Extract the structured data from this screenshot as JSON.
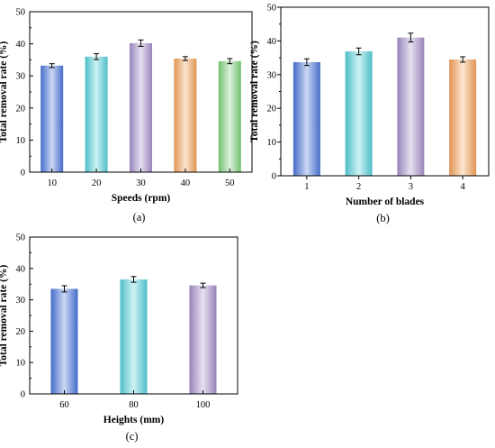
{
  "chart_data": [
    {
      "type": "bar",
      "panel_label": "(a)",
      "xlabel": "Speeds (rpm)",
      "ylabel": "Total removal rate  (%)",
      "ylim": [
        0,
        50
      ],
      "yticks": [
        0,
        10,
        20,
        30,
        40,
        50
      ],
      "categories": [
        "10",
        "20",
        "30",
        "40",
        "50"
      ],
      "values": [
        33.2,
        36.0,
        40.2,
        35.4,
        34.6
      ],
      "errors": [
        0.6,
        0.9,
        1.0,
        0.6,
        0.8
      ],
      "colors": [
        "#4a74d9",
        "#54cfd9",
        "#a48fc9",
        "#f3a15a",
        "#7dcf7a"
      ],
      "grid": false
    },
    {
      "type": "bar",
      "panel_label": "(b)",
      "xlabel": "Number of blades",
      "ylabel": "Total removal rate  (%)",
      "ylim": [
        0,
        50
      ],
      "yticks": [
        0,
        10,
        20,
        30,
        40,
        50
      ],
      "categories": [
        "1",
        "2",
        "3",
        "4"
      ],
      "values": [
        33.7,
        36.9,
        41.0,
        34.5
      ],
      "errors": [
        1.0,
        1.0,
        1.3,
        0.8
      ],
      "colors": [
        "#4a74d9",
        "#54cfd9",
        "#a48fc9",
        "#f3a15a"
      ],
      "grid": false
    },
    {
      "type": "bar",
      "panel_label": "(c)",
      "xlabel": "Heights (mm)",
      "ylabel": "Total removal rate  (%)",
      "ylim": [
        0,
        50
      ],
      "yticks": [
        0,
        10,
        20,
        30,
        40,
        50
      ],
      "categories": [
        "60",
        "80",
        "100"
      ],
      "values": [
        33.5,
        36.5,
        34.6
      ],
      "errors": [
        1.0,
        0.9,
        0.7
      ],
      "colors": [
        "#4a74d9",
        "#54cfd9",
        "#a48fc9"
      ],
      "grid": false
    }
  ]
}
